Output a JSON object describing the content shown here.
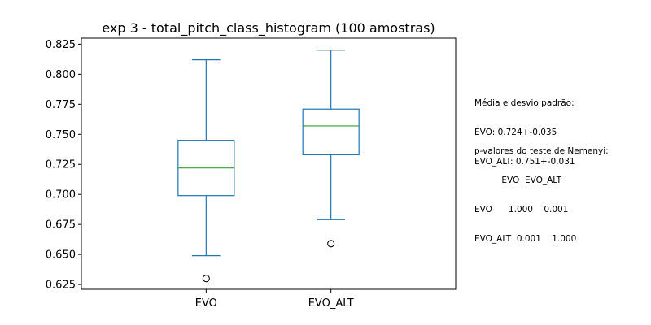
{
  "chart_data": {
    "type": "box",
    "title": "exp 3 - total_pitch_class_histogram (100 amostras)",
    "xlabel": "",
    "ylabel": "",
    "ylim": [
      0.621,
      0.83
    ],
    "yticks": [
      "0.625",
      "0.650",
      "0.675",
      "0.700",
      "0.725",
      "0.750",
      "0.775",
      "0.800",
      "0.825"
    ],
    "grid": false,
    "box_color": "#1f77b4",
    "median_color": "#2ca02c",
    "categories": [
      "EVO",
      "EVO_ALT"
    ],
    "series": [
      {
        "category": "EVO",
        "whisker_low": 0.649,
        "q1": 0.699,
        "median": 0.722,
        "q3": 0.745,
        "whisker_high": 0.812,
        "outliers": [
          0.63
        ]
      },
      {
        "category": "EVO_ALT",
        "whisker_low": 0.679,
        "q1": 0.733,
        "median": 0.757,
        "q3": 0.771,
        "whisker_high": 0.82,
        "outliers": [
          0.659
        ]
      }
    ]
  },
  "annotations": {
    "stats": {
      "title": "Média e desvio padrão:",
      "lines": [
        "EVO: 0.724+-0.035",
        "EVO_ALT: 0.751+-0.031"
      ]
    },
    "nemenyi": {
      "title": "p-valores do teste de Nemenyi:",
      "header": "          EVO  EVO_ALT",
      "rows": [
        "EVO      1.000    0.001",
        "EVO_ALT  0.001    1.000"
      ]
    }
  }
}
